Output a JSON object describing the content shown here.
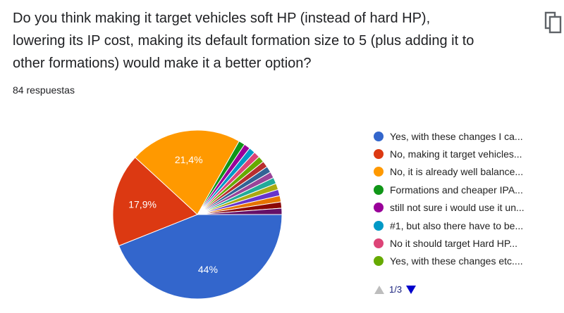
{
  "question": {
    "lines": [
      "Do you think making it target vehicles soft HP (instead of hard HP),",
      "lowering its IP cost, making its default formation size to 5 (plus adding it to",
      "other formations) would make it a better option?"
    ]
  },
  "response_count": "84 respuestas",
  "copy_icon": "copy-icon",
  "chart_data": {
    "type": "pie",
    "title": "",
    "slices": [
      {
        "label": "Yes, with these changes I ca...",
        "value": 44.0,
        "color": "#3366cc",
        "data_label": "44%"
      },
      {
        "label": "No, making it target vehicles...",
        "value": 17.9,
        "color": "#dc3912",
        "data_label": "17,9%"
      },
      {
        "label": "No, it is already well balance...",
        "value": 21.4,
        "color": "#ff9900",
        "data_label": "21,4%"
      },
      {
        "label": "Formations and cheaper IPA...",
        "value": 1.2,
        "color": "#109618",
        "data_label": ""
      },
      {
        "label": "still not sure i would use it un...",
        "value": 1.2,
        "color": "#990099",
        "data_label": ""
      },
      {
        "label": "#1, but also there have to be...",
        "value": 1.2,
        "color": "#0099c6",
        "data_label": ""
      },
      {
        "label": "No it should target Hard HP...",
        "value": 1.2,
        "color": "#dd4477",
        "data_label": ""
      },
      {
        "label": "Yes, with these changes etc....",
        "value": 1.2,
        "color": "#66aa00",
        "data_label": ""
      },
      {
        "label": "",
        "value": 1.2,
        "color": "#b82e2e",
        "data_label": ""
      },
      {
        "label": "",
        "value": 1.2,
        "color": "#316395",
        "data_label": ""
      },
      {
        "label": "",
        "value": 1.2,
        "color": "#994499",
        "data_label": ""
      },
      {
        "label": "",
        "value": 1.2,
        "color": "#22aa99",
        "data_label": ""
      },
      {
        "label": "",
        "value": 1.2,
        "color": "#aaaa11",
        "data_label": ""
      },
      {
        "label": "",
        "value": 1.2,
        "color": "#6633cc",
        "data_label": ""
      },
      {
        "label": "",
        "value": 1.2,
        "color": "#e67300",
        "data_label": ""
      },
      {
        "label": "",
        "value": 1.2,
        "color": "#8b0707",
        "data_label": ""
      },
      {
        "label": "",
        "value": 1.2,
        "color": "#651067",
        "data_label": ""
      }
    ],
    "legend_position": "right"
  },
  "legend": {
    "visible_count": 8,
    "pager": {
      "text": "1/3",
      "prev_icon": "triangle-up-icon",
      "next_icon": "triangle-down-icon",
      "prev_color": "#bdbdbd",
      "next_color": "#0000cc"
    }
  }
}
